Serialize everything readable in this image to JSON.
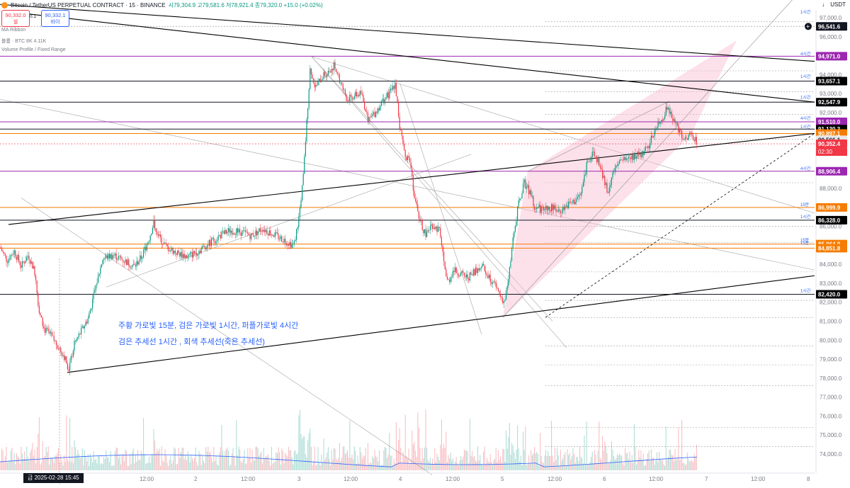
{
  "header": {
    "title": "Bitcoin / TetherUS PERPETUAL CONTRACT · 15 · BINANCE",
    "ohlc": "시79,304.9 고79,581.6 저78,921.4 종79,320.0 +15.0 (+0.02%)"
  },
  "trade": {
    "sell_price": "90,332.0",
    "sell_label": "셀",
    "spread": "0.1",
    "buy_price": "90,332.1",
    "buy_label": "바이"
  },
  "indicators": {
    "ma": "MA Ribbon",
    "volume": "볼륨 · BTC  8K  4.11K",
    "vp": "Volume Profile / Fixed Range"
  },
  "currency": "USDT",
  "annotations": {
    "line1": "주황 가로빛 15분, 검은 가로빛 1시간, 퍼플가로빛 4시간",
    "line2": "검은 추세선 1시간 , 회색 추세선(죽은 추세선)"
  },
  "crosshair_date": "금 2025-02-28   15:45",
  "colors": {
    "up": "#089981",
    "down": "#f23645",
    "orange": "#f57c00",
    "purple": "#9c27b0",
    "black": "#131722",
    "pink": "#f8bbd0",
    "blue": "#2962ff"
  },
  "chart_data": {
    "type": "candlestick",
    "ylim": [
      73500,
      98000
    ],
    "y_ticks": [
      74000,
      75000,
      76000,
      77000,
      78000,
      79000,
      80000,
      81000,
      82000,
      83000,
      84000,
      85000,
      86000,
      87000,
      88000,
      89000,
      90000,
      91000,
      92000,
      93000,
      94000,
      95000,
      96000,
      97000
    ],
    "x_labels": [
      "12:00",
      "2",
      "12:00",
      "3",
      "12:00",
      "4",
      "12:00",
      "5",
      "12:00",
      "6",
      "12:00",
      "7",
      "12:00",
      "8"
    ],
    "price_tags": [
      {
        "value": 96541.6,
        "label": "96,541.6",
        "kind": "cursor"
      },
      {
        "value": 94971.0,
        "label": "94,971.0",
        "kind": "purple"
      },
      {
        "value": 93657.1,
        "label": "93,657.1",
        "kind": "black"
      },
      {
        "value": 92547.9,
        "label": "92,547.9",
        "kind": "black"
      },
      {
        "value": 91510.0,
        "label": "91,510.0",
        "kind": "purple"
      },
      {
        "value": 91130.3,
        "label": "91,130.3",
        "kind": "black"
      },
      {
        "value": 90897.1,
        "label": "90,897.1",
        "kind": "orange"
      },
      {
        "value": 90566.1,
        "label": "90,566.1",
        "kind": "gray"
      },
      {
        "value": 90352.4,
        "label": "90,352.4",
        "kind": "last"
      },
      {
        "value": 88906.4,
        "label": "88,906.4",
        "kind": "purple"
      },
      {
        "value": 86999.9,
        "label": "86,999.9",
        "kind": "orange"
      },
      {
        "value": 86328.0,
        "label": "86,328.0",
        "kind": "black"
      },
      {
        "value": 85064.9,
        "label": "85,064.9",
        "kind": "orange"
      },
      {
        "value": 84851.8,
        "label": "84,851.8",
        "kind": "orange"
      },
      {
        "value": 82420.0,
        "label": "82,420.0",
        "kind": "black"
      }
    ],
    "countdown": "02:30",
    "level_notes": [
      {
        "value": 97300,
        "label": "1시간"
      },
      {
        "value": 95100,
        "label": "4시간"
      },
      {
        "value": 93900,
        "label": "1시간"
      },
      {
        "value": 92800,
        "label": "1시간"
      },
      {
        "value": 91700,
        "label": "4시간"
      },
      {
        "value": 91250,
        "label": "1시간"
      },
      {
        "value": 89050,
        "label": "4시간"
      },
      {
        "value": 87150,
        "label": "15분"
      },
      {
        "value": 86500,
        "label": "1시간"
      },
      {
        "value": 85280,
        "label": "15분"
      },
      {
        "value": 85130,
        "label": "15분"
      },
      {
        "value": 82600,
        "label": "1시간"
      }
    ],
    "close_path": [
      {
        "x": 0,
        "v": 84900
      },
      {
        "x": 10,
        "v": 84200
      },
      {
        "x": 20,
        "v": 84700
      },
      {
        "x": 30,
        "v": 83900
      },
      {
        "x": 40,
        "v": 84500
      },
      {
        "x": 50,
        "v": 83500
      },
      {
        "x": 55,
        "v": 81500
      },
      {
        "x": 62,
        "v": 80600
      },
      {
        "x": 70,
        "v": 80300
      },
      {
        "x": 80,
        "v": 79800
      },
      {
        "x": 90,
        "v": 79200
      },
      {
        "x": 97,
        "v": 78500
      },
      {
        "x": 105,
        "v": 79800
      },
      {
        "x": 115,
        "v": 80500
      },
      {
        "x": 125,
        "v": 81200
      },
      {
        "x": 135,
        "v": 82800
      },
      {
        "x": 145,
        "v": 84300
      },
      {
        "x": 160,
        "v": 84500
      },
      {
        "x": 175,
        "v": 84200
      },
      {
        "x": 190,
        "v": 83900
      },
      {
        "x": 200,
        "v": 84400
      },
      {
        "x": 210,
        "v": 85300
      },
      {
        "x": 217,
        "v": 86200
      },
      {
        "x": 225,
        "v": 85400
      },
      {
        "x": 235,
        "v": 84900
      },
      {
        "x": 250,
        "v": 84600
      },
      {
        "x": 265,
        "v": 84400
      },
      {
        "x": 280,
        "v": 84700
      },
      {
        "x": 295,
        "v": 85100
      },
      {
        "x": 310,
        "v": 85500
      },
      {
        "x": 325,
        "v": 85800
      },
      {
        "x": 340,
        "v": 85700
      },
      {
        "x": 355,
        "v": 85500
      },
      {
        "x": 370,
        "v": 85900
      },
      {
        "x": 385,
        "v": 85600
      },
      {
        "x": 400,
        "v": 85300
      },
      {
        "x": 415,
        "v": 85000
      },
      {
        "x": 422,
        "v": 86500
      },
      {
        "x": 428,
        "v": 88500
      },
      {
        "x": 433,
        "v": 91500
      },
      {
        "x": 438,
        "v": 94400
      },
      {
        "x": 445,
        "v": 93300
      },
      {
        "x": 455,
        "v": 93900
      },
      {
        "x": 465,
        "v": 94200
      },
      {
        "x": 472,
        "v": 94500
      },
      {
        "x": 480,
        "v": 93600
      },
      {
        "x": 490,
        "v": 92700
      },
      {
        "x": 500,
        "v": 92900
      },
      {
        "x": 510,
        "v": 93000
      },
      {
        "x": 520,
        "v": 91600
      },
      {
        "x": 530,
        "v": 92000
      },
      {
        "x": 540,
        "v": 92600
      },
      {
        "x": 550,
        "v": 93000
      },
      {
        "x": 558,
        "v": 93500
      },
      {
        "x": 565,
        "v": 91000
      },
      {
        "x": 572,
        "v": 89800
      },
      {
        "x": 580,
        "v": 89300
      },
      {
        "x": 585,
        "v": 87500
      },
      {
        "x": 592,
        "v": 86400
      },
      {
        "x": 600,
        "v": 85600
      },
      {
        "x": 610,
        "v": 86100
      },
      {
        "x": 620,
        "v": 85800
      },
      {
        "x": 627,
        "v": 84000
      },
      {
        "x": 632,
        "v": 83000
      },
      {
        "x": 640,
        "v": 83700
      },
      {
        "x": 650,
        "v": 83500
      },
      {
        "x": 660,
        "v": 83300
      },
      {
        "x": 670,
        "v": 83600
      },
      {
        "x": 680,
        "v": 83900
      },
      {
        "x": 690,
        "v": 83400
      },
      {
        "x": 700,
        "v": 82800
      },
      {
        "x": 707,
        "v": 82300
      },
      {
        "x": 712,
        "v": 82000
      },
      {
        "x": 718,
        "v": 83200
      },
      {
        "x": 725,
        "v": 85500
      },
      {
        "x": 732,
        "v": 87200
      },
      {
        "x": 740,
        "v": 88300
      },
      {
        "x": 748,
        "v": 87800
      },
      {
        "x": 755,
        "v": 87000
      },
      {
        "x": 765,
        "v": 86900
      },
      {
        "x": 775,
        "v": 87000
      },
      {
        "x": 790,
        "v": 86800
      },
      {
        "x": 800,
        "v": 87100
      },
      {
        "x": 810,
        "v": 87300
      },
      {
        "x": 820,
        "v": 87700
      },
      {
        "x": 828,
        "v": 89200
      },
      {
        "x": 838,
        "v": 90000
      },
      {
        "x": 848,
        "v": 89000
      },
      {
        "x": 858,
        "v": 87800
      },
      {
        "x": 866,
        "v": 88900
      },
      {
        "x": 876,
        "v": 89400
      },
      {
        "x": 886,
        "v": 89600
      },
      {
        "x": 896,
        "v": 89700
      },
      {
        "x": 906,
        "v": 89800
      },
      {
        "x": 916,
        "v": 90300
      },
      {
        "x": 924,
        "v": 91000
      },
      {
        "x": 934,
        "v": 91600
      },
      {
        "x": 942,
        "v": 92300
      },
      {
        "x": 950,
        "v": 91600
      },
      {
        "x": 960,
        "v": 91000
      },
      {
        "x": 968,
        "v": 90500
      },
      {
        "x": 975,
        "v": 90900
      },
      {
        "x": 980,
        "v": 90700
      },
      {
        "x": 985,
        "v": 90350
      }
    ]
  }
}
